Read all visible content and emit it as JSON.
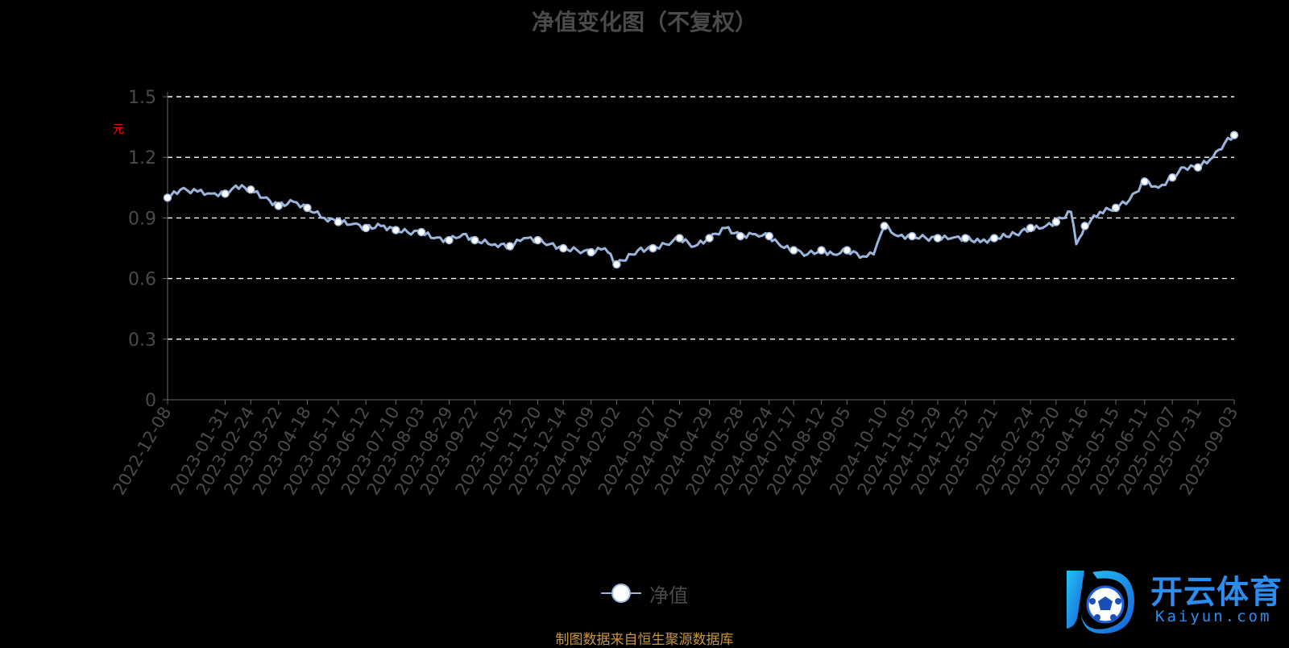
{
  "logo": {
    "text": "开云体育",
    "url": "Kaiyun.com"
  },
  "chart_data": {
    "type": "line",
    "title": "净值变化图（不复权）",
    "ylabel": "元",
    "xlabel": "",
    "source_note": "制图数据来自恒生聚源数据库",
    "legend": {
      "position": "bottom-center",
      "entries": [
        "净值"
      ]
    },
    "grid": true,
    "colors": {
      "line": "#9bb5dc",
      "marker_fill": "#ffffff",
      "grid": "#ffffff",
      "axis": "#666666",
      "tick": "#4a4a4a"
    },
    "ylim": [
      0,
      1.5
    ],
    "yticks": [
      "0",
      "0.3",
      "0.6",
      "0.9",
      "1.2",
      "1.5"
    ],
    "xticks": [
      "2022-12-08",
      "2023-01-31",
      "2023-02-24",
      "2023-03-22",
      "2023-04-18",
      "2023-05-17",
      "2023-06-12",
      "2023-07-10",
      "2023-08-03",
      "2023-08-29",
      "2023-09-22",
      "2023-10-25",
      "2023-11-20",
      "2023-12-14",
      "2024-01-09",
      "2024-02-02",
      "2024-03-07",
      "2024-04-01",
      "2024-04-29",
      "2024-05-28",
      "2024-06-24",
      "2024-07-17",
      "2024-08-12",
      "2024-09-05",
      "2024-10-10",
      "2024-11-05",
      "2024-11-29",
      "2024-12-25",
      "2025-01-21",
      "2025-02-24",
      "2025-03-20",
      "2025-04-16",
      "2025-05-15",
      "2025-06-11",
      "2025-07-07",
      "2025-07-31",
      "2025-09-03"
    ],
    "series": [
      {
        "name": "净值",
        "x": [
          "2022-12-08",
          "2022-12-20",
          "2023-01-05",
          "2023-01-18",
          "2023-01-31",
          "2023-02-10",
          "2023-02-24",
          "2023-03-08",
          "2023-03-22",
          "2023-04-05",
          "2023-04-18",
          "2023-05-04",
          "2023-05-17",
          "2023-05-31",
          "2023-06-12",
          "2023-06-26",
          "2023-07-10",
          "2023-07-21",
          "2023-08-03",
          "2023-08-15",
          "2023-08-29",
          "2023-09-11",
          "2023-09-22",
          "2023-10-11",
          "2023-10-25",
          "2023-11-07",
          "2023-11-20",
          "2023-12-01",
          "2023-12-14",
          "2023-12-27",
          "2024-01-09",
          "2024-01-22",
          "2024-02-02",
          "2024-02-22",
          "2024-03-07",
          "2024-03-19",
          "2024-04-01",
          "2024-04-15",
          "2024-04-29",
          "2024-05-14",
          "2024-05-28",
          "2024-06-11",
          "2024-06-24",
          "2024-07-05",
          "2024-07-17",
          "2024-07-30",
          "2024-08-12",
          "2024-08-23",
          "2024-09-05",
          "2024-09-20",
          "2024-09-30",
          "2024-10-10",
          "2024-10-23",
          "2024-11-05",
          "2024-11-18",
          "2024-11-29",
          "2024-12-12",
          "2024-12-25",
          "2025-01-08",
          "2025-01-21",
          "2025-02-10",
          "2025-02-24",
          "2025-03-07",
          "2025-03-20",
          "2025-04-03",
          "2025-04-08",
          "2025-04-16",
          "2025-04-30",
          "2025-05-15",
          "2025-05-28",
          "2025-06-11",
          "2025-06-24",
          "2025-07-07",
          "2025-07-18",
          "2025-07-31",
          "2025-08-14",
          "2025-08-25",
          "2025-09-03"
        ],
        "values": [
          1.0,
          1.04,
          1.03,
          1.02,
          1.02,
          1.06,
          1.04,
          1.0,
          0.96,
          0.98,
          0.95,
          0.9,
          0.88,
          0.87,
          0.85,
          0.86,
          0.84,
          0.83,
          0.83,
          0.8,
          0.79,
          0.82,
          0.79,
          0.77,
          0.76,
          0.8,
          0.79,
          0.77,
          0.75,
          0.74,
          0.73,
          0.75,
          0.67,
          0.74,
          0.75,
          0.77,
          0.8,
          0.76,
          0.8,
          0.85,
          0.81,
          0.82,
          0.81,
          0.76,
          0.74,
          0.72,
          0.74,
          0.72,
          0.74,
          0.71,
          0.72,
          0.86,
          0.81,
          0.81,
          0.8,
          0.8,
          0.8,
          0.8,
          0.78,
          0.8,
          0.82,
          0.85,
          0.85,
          0.88,
          0.93,
          0.77,
          0.86,
          0.93,
          0.95,
          0.99,
          1.08,
          1.05,
          1.1,
          1.15,
          1.15,
          1.2,
          1.27,
          1.31
        ],
        "markers": [
          "2022-12-08",
          "2023-01-31",
          "2023-02-24",
          "2023-03-22",
          "2023-04-18",
          "2023-05-17",
          "2023-06-12",
          "2023-07-10",
          "2023-08-03",
          "2023-08-29",
          "2023-09-22",
          "2023-10-25",
          "2023-11-20",
          "2023-12-14",
          "2024-01-09",
          "2024-02-02",
          "2024-03-07",
          "2024-04-01",
          "2024-04-29",
          "2024-05-28",
          "2024-06-24",
          "2024-07-17",
          "2024-08-12",
          "2024-09-05",
          "2024-10-10",
          "2024-11-05",
          "2024-11-29",
          "2024-12-25",
          "2025-01-21",
          "2025-02-24",
          "2025-03-20",
          "2025-04-16",
          "2025-05-15",
          "2025-06-11",
          "2025-07-07",
          "2025-07-31",
          "2025-09-03"
        ]
      }
    ]
  }
}
